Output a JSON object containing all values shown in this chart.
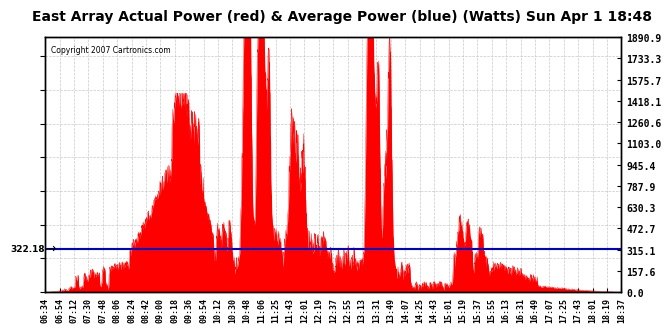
{
  "title": "East Array Actual Power (red) & Average Power (blue) (Watts) Sun Apr 1 18:48",
  "copyright": "Copyright 2007 Cartronics.com",
  "avg_power": 322.18,
  "ymax": 1890.9,
  "ymin": 0.0,
  "yticks": [
    0.0,
    157.6,
    315.1,
    472.7,
    630.3,
    787.9,
    945.4,
    1103.0,
    1260.6,
    1418.1,
    1575.7,
    1733.3,
    1890.9
  ],
  "xtick_labels": [
    "06:34",
    "06:54",
    "07:12",
    "07:30",
    "07:48",
    "08:06",
    "08:24",
    "08:42",
    "09:00",
    "09:18",
    "09:36",
    "09:54",
    "10:12",
    "10:30",
    "10:48",
    "11:06",
    "11:25",
    "11:43",
    "12:01",
    "12:19",
    "12:37",
    "12:55",
    "13:13",
    "13:31",
    "13:49",
    "14:07",
    "14:25",
    "14:43",
    "15:01",
    "15:19",
    "15:37",
    "15:55",
    "16:13",
    "16:31",
    "16:49",
    "17:07",
    "17:25",
    "17:43",
    "18:01",
    "18:19",
    "18:37"
  ],
  "title_fontsize": 11,
  "axis_bg": "#ffffff",
  "grid_color": "#bbbbbb",
  "red_color": "#ff0000",
  "blue_color": "#0000cc",
  "avg_label": "322.18"
}
